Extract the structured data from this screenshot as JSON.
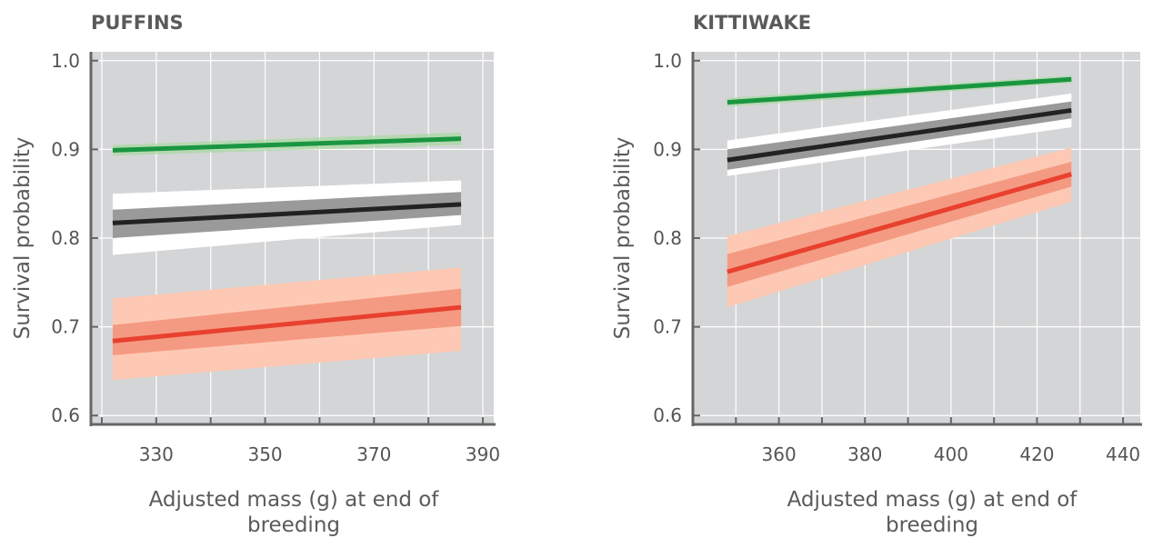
{
  "chart_data": [
    {
      "type": "line",
      "title": "PUFFINS",
      "xlabel_lines": [
        "Adjusted mass (g) at end of",
        "breeding"
      ],
      "ylabel": "Survival probability",
      "xlim": [
        318,
        392
      ],
      "ylim": [
        0.59,
        1.01
      ],
      "xticks": [
        330,
        350,
        370,
        390
      ],
      "xgrid": [
        320,
        340,
        360,
        380
      ],
      "yticks": [
        0.6,
        0.7,
        0.8,
        0.9,
        1.0
      ],
      "ytick_labels": [
        "0.6",
        "0.7",
        "0.8",
        "0.9",
        "1.0"
      ],
      "grid": true,
      "series": [
        {
          "color": "#1a9641",
          "x": [
            322,
            386
          ],
          "y": [
            0.899,
            0.912
          ],
          "bands": [
            {
              "color": "#a6d9a0",
              "opacity": 0.7,
              "lower": [
                0.893,
                0.905
              ],
              "upper": [
                0.905,
                0.919
              ]
            }
          ]
        },
        {
          "color": "#222222",
          "x": [
            322,
            386
          ],
          "y": [
            0.817,
            0.838
          ],
          "bands": [
            {
              "color": "#ffffff",
              "opacity": 1,
              "lower": [
                0.781,
                0.815
              ],
              "upper": [
                0.85,
                0.865
              ]
            },
            {
              "color": "#9a9a9a",
              "opacity": 1,
              "lower": [
                0.8,
                0.826
              ],
              "upper": [
                0.832,
                0.852
              ]
            }
          ]
        },
        {
          "color": "#e8412f",
          "x": [
            322,
            386
          ],
          "y": [
            0.684,
            0.722
          ],
          "bands": [
            {
              "color": "#fdc9b4",
              "opacity": 1,
              "lower": [
                0.64,
                0.673
              ],
              "upper": [
                0.732,
                0.767
              ]
            },
            {
              "color": "#f49a82",
              "opacity": 1,
              "lower": [
                0.668,
                0.701
              ],
              "upper": [
                0.702,
                0.743
              ]
            }
          ]
        }
      ]
    },
    {
      "type": "line",
      "title": "KITTIWAKE",
      "xlabel_lines": [
        "Adjusted mass (g) at end of",
        "breeding"
      ],
      "ylabel": "Survival probability",
      "xlim": [
        340,
        444
      ],
      "ylim": [
        0.59,
        1.01
      ],
      "xticks": [
        360,
        380,
        400,
        420,
        440
      ],
      "xgrid": [
        350,
        370,
        390,
        410,
        430
      ],
      "yticks": [
        0.6,
        0.7,
        0.8,
        0.9,
        1.0
      ],
      "ytick_labels": [
        "0.6",
        "0.7",
        "0.8",
        "0.9",
        "1.0"
      ],
      "grid": true,
      "series": [
        {
          "color": "#1a9641",
          "x": [
            348,
            428
          ],
          "y": [
            0.953,
            0.979
          ],
          "bands": [
            {
              "color": "#a6d9a0",
              "opacity": 0.7,
              "lower": [
                0.948,
                0.975
              ],
              "upper": [
                0.958,
                0.983
              ]
            }
          ]
        },
        {
          "color": "#222222",
          "x": [
            348,
            428
          ],
          "y": [
            0.888,
            0.944
          ],
          "bands": [
            {
              "color": "#ffffff",
              "opacity": 1,
              "lower": [
                0.87,
                0.925
              ],
              "upper": [
                0.91,
                0.963
              ]
            },
            {
              "color": "#9a9a9a",
              "opacity": 1,
              "lower": [
                0.877,
                0.935
              ],
              "upper": [
                0.9,
                0.954
              ]
            }
          ]
        },
        {
          "color": "#e8412f",
          "x": [
            348,
            428
          ],
          "y": [
            0.762,
            0.872
          ],
          "bands": [
            {
              "color": "#fdc9b4",
              "opacity": 1,
              "lower": [
                0.722,
                0.841
              ],
              "upper": [
                0.802,
                0.902
              ]
            },
            {
              "color": "#f49a82",
              "opacity": 1,
              "lower": [
                0.745,
                0.858
              ],
              "upper": [
                0.782,
                0.886
              ]
            }
          ]
        }
      ]
    }
  ]
}
